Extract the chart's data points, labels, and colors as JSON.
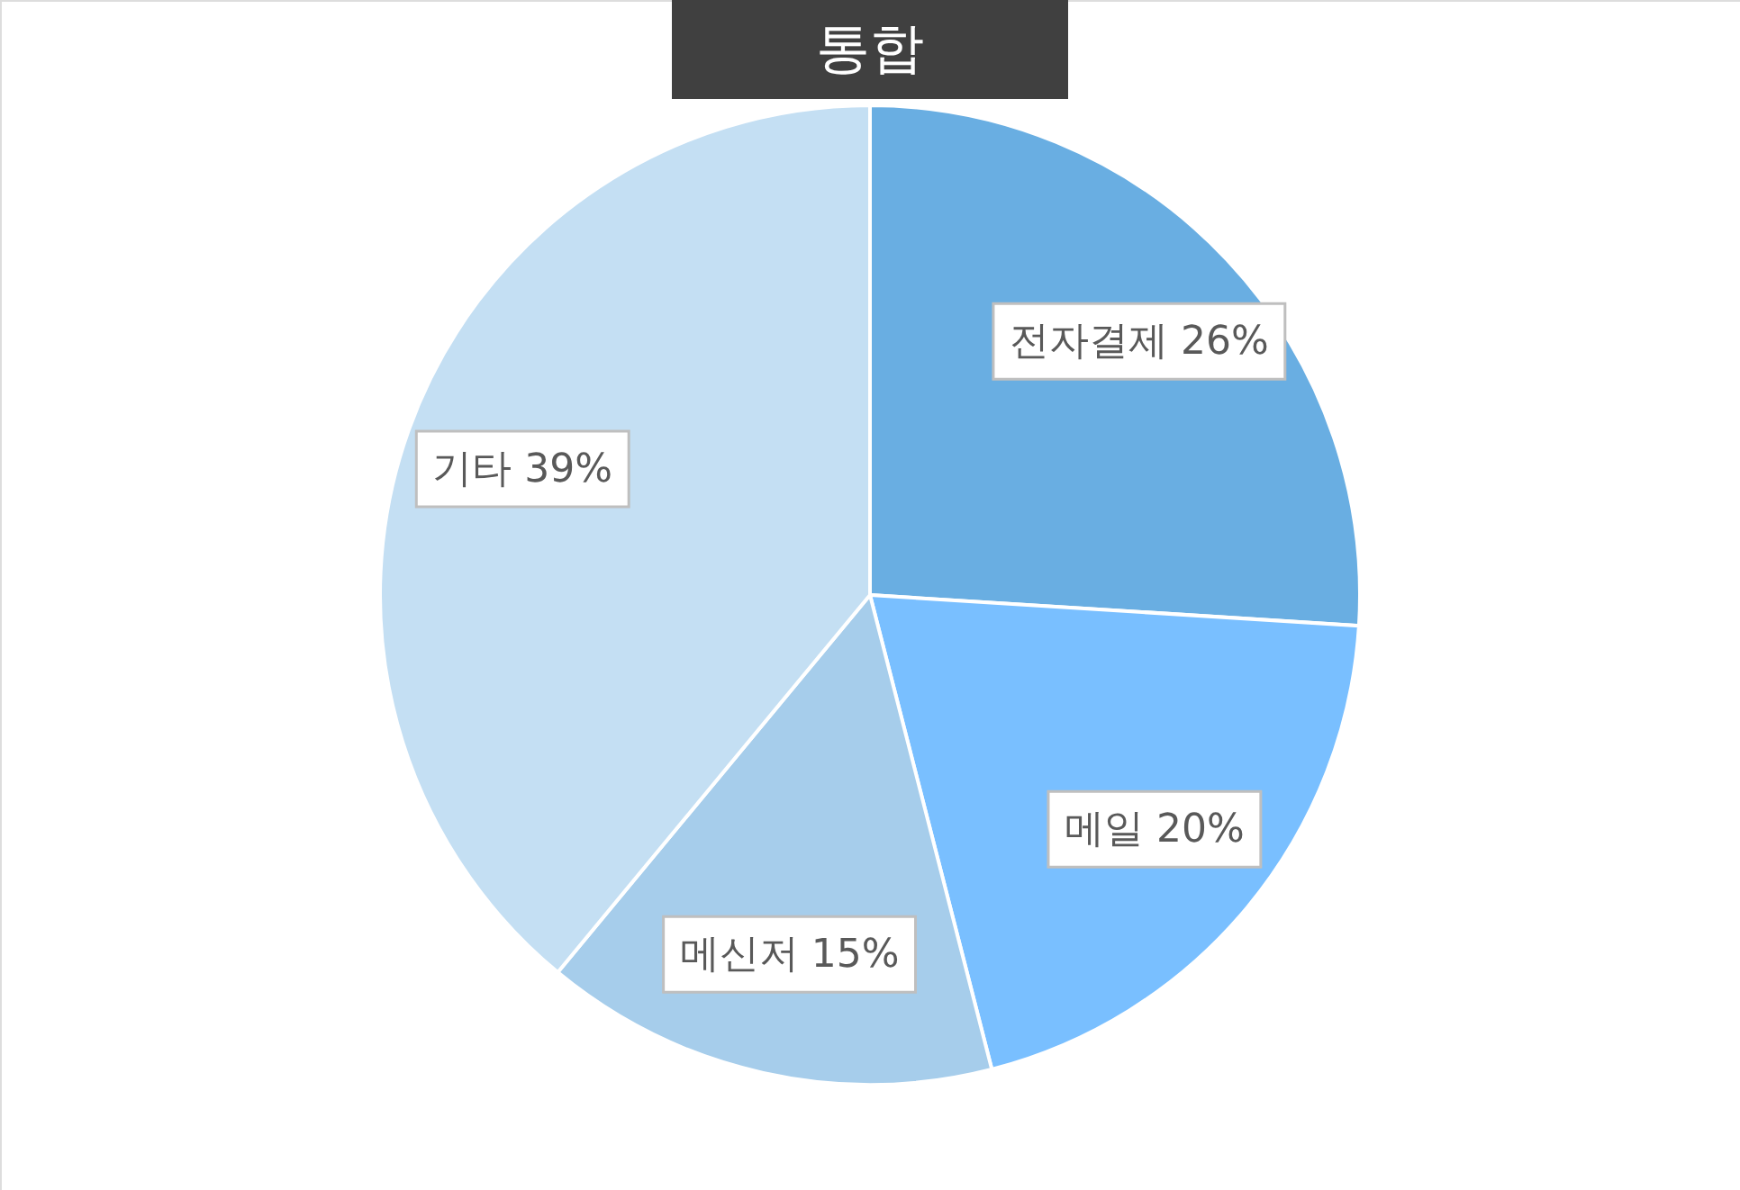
{
  "chart_data": {
    "type": "pie",
    "title": "통합",
    "categories": [
      "전자결제",
      "메일",
      "메신저",
      "기타"
    ],
    "values": [
      26,
      20,
      15,
      39
    ],
    "value_labels": [
      "26%",
      "20%",
      "15%",
      "39%"
    ],
    "colors": [
      "#69aee2",
      "#79bfff",
      "#a6cdeb",
      "#c4dff3"
    ]
  }
}
